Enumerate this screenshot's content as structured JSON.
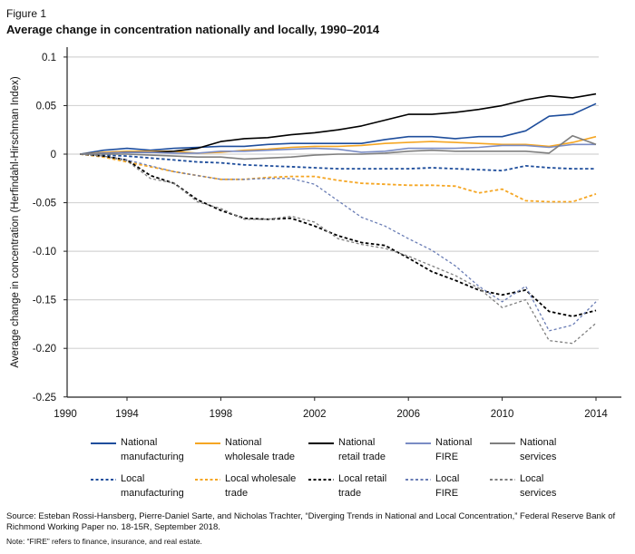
{
  "figure_label": "Figure 1",
  "title": "Average change in concentration nationally and locally, 1990–2014",
  "source": "Source: Esteban Rossi-Hansberg, Pierre-Daniel Sarte, and Nicholas Trachter, “Diverging Trends in National and Local Concentration,” Federal Reserve Bank of Richmond Working Paper no. 18-15R, September 2018.",
  "note": "Note: “FIRE” refers to finance, insurance, and real estate.",
  "chart_data": {
    "type": "line",
    "title": "Average change in concentration nationally and locally, 1990–2014",
    "xlabel": "",
    "ylabel": "Average change in concentration (Herfindahl-Hirschman Index)",
    "ylim": [
      -0.25,
      0.1
    ],
    "yticks": [
      0.1,
      0.05,
      0,
      -0.05,
      -0.1,
      -0.15,
      -0.2,
      -0.25
    ],
    "ytick_labels": [
      "0.1",
      "0.05",
      "0",
      "-0.05",
      "-0.10",
      "-0.15",
      "-0.20",
      "-0.25"
    ],
    "xticks": [
      1990,
      1994,
      1998,
      2002,
      2006,
      2010,
      2014
    ],
    "xtick_labels": [
      "1990",
      "1994",
      "1998",
      "2002",
      "2006",
      "2010",
      "2014"
    ],
    "grid": "horizontal",
    "legend_placement": "bottom",
    "x": [
      1992,
      1993,
      1994,
      1995,
      1996,
      1997,
      1998,
      1999,
      2000,
      2001,
      2002,
      2003,
      2004,
      2005,
      2006,
      2007,
      2008,
      2009,
      2010,
      2011,
      2012,
      2013,
      2014
    ],
    "series": [
      {
        "name": "National manufacturing",
        "color": "#1f4e9c",
        "style": "solid",
        "values": [
          0,
          0.004,
          0.006,
          0.004,
          0.006,
          0.007,
          0.008,
          0.008,
          0.01,
          0.011,
          0.011,
          0.011,
          0.011,
          0.015,
          0.018,
          0.018,
          0.016,
          0.018,
          0.018,
          0.024,
          0.039,
          0.041,
          0.052
        ]
      },
      {
        "name": "National wholesale trade",
        "color": "#f5a623",
        "style": "solid",
        "values": [
          0,
          0.002,
          0.003,
          0.003,
          0.003,
          0.001,
          0.002,
          0.004,
          0.005,
          0.007,
          0.008,
          0.008,
          0.009,
          0.011,
          0.012,
          0.013,
          0.012,
          0.011,
          0.01,
          0.01,
          0.008,
          0.012,
          0.018
        ]
      },
      {
        "name": "National retail trade",
        "color": "#000000",
        "style": "solid",
        "values": [
          0,
          0.001,
          0.002,
          0.002,
          0.003,
          0.006,
          0.013,
          0.016,
          0.017,
          0.02,
          0.022,
          0.025,
          0.029,
          0.035,
          0.041,
          0.041,
          0.043,
          0.046,
          0.05,
          0.056,
          0.06,
          0.058,
          0.062
        ]
      },
      {
        "name": "National FIRE",
        "color": "#7a8cc4",
        "style": "solid",
        "values": [
          0,
          0.001,
          0.002,
          0.002,
          0.001,
          0.001,
          0.003,
          0.003,
          0.004,
          0.005,
          0.006,
          0.005,
          0.002,
          0.003,
          0.006,
          0.006,
          0.006,
          0.007,
          0.009,
          0.009,
          0.007,
          0.01,
          0.01
        ]
      },
      {
        "name": "National services",
        "color": "#7f7f7f",
        "style": "solid",
        "values": [
          0,
          0,
          0,
          -0.001,
          -0.002,
          -0.003,
          -0.003,
          -0.005,
          -0.004,
          -0.003,
          -0.001,
          0,
          0,
          0.001,
          0.003,
          0.004,
          0.003,
          0.003,
          0.003,
          0.003,
          0.001,
          0.019,
          0.01
        ]
      },
      {
        "name": "Local manufacturing",
        "color": "#1f4e9c",
        "style": "dashed",
        "values": [
          0,
          -0.001,
          -0.002,
          -0.004,
          -0.006,
          -0.008,
          -0.009,
          -0.011,
          -0.012,
          -0.013,
          -0.014,
          -0.015,
          -0.015,
          -0.015,
          -0.015,
          -0.014,
          -0.015,
          -0.016,
          -0.017,
          -0.012,
          -0.014,
          -0.015,
          -0.015
        ]
      },
      {
        "name": "Local wholesale trade",
        "color": "#f5a623",
        "style": "dashed",
        "values": [
          0,
          -0.003,
          -0.008,
          -0.013,
          -0.018,
          -0.022,
          -0.026,
          -0.026,
          -0.024,
          -0.023,
          -0.023,
          -0.027,
          -0.03,
          -0.031,
          -0.032,
          -0.032,
          -0.033,
          -0.04,
          -0.036,
          -0.048,
          -0.049,
          -0.049,
          -0.041
        ]
      },
      {
        "name": "Local retail trade",
        "color": "#000000",
        "style": "dashed",
        "values": [
          0,
          -0.002,
          -0.006,
          -0.022,
          -0.03,
          -0.047,
          -0.058,
          -0.066,
          -0.067,
          -0.066,
          -0.074,
          -0.084,
          -0.091,
          -0.094,
          -0.107,
          -0.121,
          -0.13,
          -0.14,
          -0.145,
          -0.14,
          -0.162,
          -0.167,
          -0.161
        ]
      },
      {
        "name": "Local FIRE",
        "color": "#6a7db5",
        "style": "dashed",
        "values": [
          0,
          -0.002,
          -0.006,
          -0.012,
          -0.018,
          -0.022,
          -0.026,
          -0.026,
          -0.025,
          -0.025,
          -0.031,
          -0.048,
          -0.065,
          -0.074,
          -0.087,
          -0.099,
          -0.115,
          -0.136,
          -0.152,
          -0.136,
          -0.182,
          -0.176,
          -0.152
        ]
      },
      {
        "name": "Local services",
        "color": "#7f7f7f",
        "style": "dashed",
        "values": [
          0,
          -0.002,
          -0.007,
          -0.025,
          -0.03,
          -0.049,
          -0.056,
          -0.067,
          -0.067,
          -0.064,
          -0.07,
          -0.087,
          -0.093,
          -0.097,
          -0.105,
          -0.115,
          -0.125,
          -0.138,
          -0.158,
          -0.15,
          -0.192,
          -0.195,
          -0.174
        ]
      }
    ],
    "legend": [
      [
        "National",
        "manufacturing"
      ],
      [
        "National",
        "wholesale trade"
      ],
      [
        "National",
        "retail trade"
      ],
      [
        "National",
        "FIRE"
      ],
      [
        "National",
        "services"
      ],
      [
        "Local",
        "manufacturing"
      ],
      [
        "Local wholesale",
        "trade"
      ],
      [
        "Local retail",
        "trade"
      ],
      [
        "Local",
        "FIRE"
      ],
      [
        "Local",
        "services"
      ]
    ]
  }
}
